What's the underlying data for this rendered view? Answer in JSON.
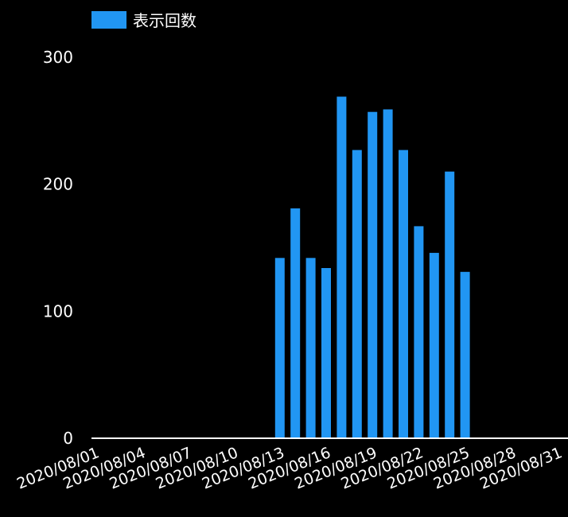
{
  "chart_data": {
    "type": "bar",
    "legend": {
      "label": "表示回数",
      "color": "#2196F3",
      "position": "top-left"
    },
    "y_axis": {
      "ticks": [
        0,
        100,
        200,
        300
      ],
      "ylim": [
        0,
        300
      ]
    },
    "x_axis": {
      "tick_labels": [
        "2020/08/01",
        "2020/08/04",
        "2020/08/07",
        "2020/08/10",
        "2020/08/13",
        "2020/08/16",
        "2020/08/19",
        "2020/08/22",
        "2020/08/25",
        "2020/08/28",
        "2020/08/31"
      ]
    },
    "series": [
      {
        "name": "表示回数",
        "color": "#2196F3",
        "points": [
          {
            "date": "2020/08/13",
            "value": 142
          },
          {
            "date": "2020/08/14",
            "value": 181
          },
          {
            "date": "2020/08/15",
            "value": 142
          },
          {
            "date": "2020/08/16",
            "value": 134
          },
          {
            "date": "2020/08/17",
            "value": 269
          },
          {
            "date": "2020/08/18",
            "value": 227
          },
          {
            "date": "2020/08/19",
            "value": 257
          },
          {
            "date": "2020/08/20",
            "value": 259
          },
          {
            "date": "2020/08/21",
            "value": 227
          },
          {
            "date": "2020/08/22",
            "value": 167
          },
          {
            "date": "2020/08/23",
            "value": 146
          },
          {
            "date": "2020/08/24",
            "value": 210
          },
          {
            "date": "2020/08/25",
            "value": 131
          }
        ]
      }
    ],
    "colors": {
      "background": "#000000",
      "axis": "#ffffff",
      "text": "#ffffff"
    }
  }
}
